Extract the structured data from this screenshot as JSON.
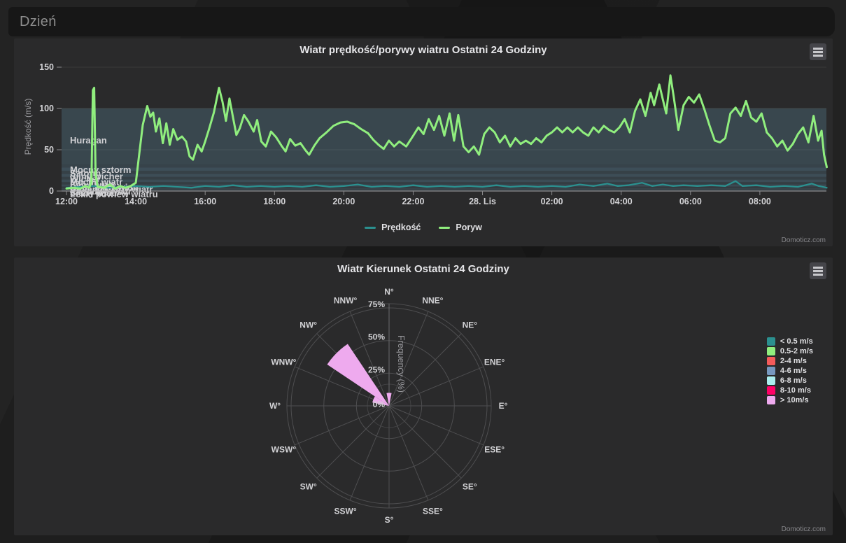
{
  "header": {
    "title": "Dzień"
  },
  "watermark": "Domoticz.com",
  "chart_data": [
    {
      "type": "line",
      "title": "Wiatr prędkość/porywy wiatru Ostatni 24 Godziny",
      "xlabel": "",
      "ylabel": "Prędkość (m/s)",
      "ylim": [
        0,
        150
      ],
      "y_ticks": [
        0,
        50,
        100,
        150
      ],
      "x_unit_hours_from": "27 Nov 12:00",
      "x_range_hours": [
        0,
        21.93
      ],
      "x_ticks": [
        {
          "t": 0,
          "label": "12:00"
        },
        {
          "t": 2,
          "label": "14:00"
        },
        {
          "t": 4,
          "label": "16:00"
        },
        {
          "t": 6,
          "label": "18:00"
        },
        {
          "t": 8,
          "label": "20:00"
        },
        {
          "t": 10,
          "label": "22:00"
        },
        {
          "t": 12,
          "label": "28. Lis"
        },
        {
          "t": 14,
          "label": "02:00"
        },
        {
          "t": 16,
          "label": "04:00"
        },
        {
          "t": 18,
          "label": "06:00"
        },
        {
          "t": 20,
          "label": "08:00"
        }
      ],
      "grid": true,
      "legend_position": "bottom",
      "plot_bands": [
        {
          "label": "Lekki powiew wiatru",
          "from": 0.3,
          "to": 1.5,
          "alpha": 0.14
        },
        {
          "label": "Słaby wiatr",
          "from": 1.5,
          "to": 3.3,
          "alpha": 0.26
        },
        {
          "label": "Łagodny wiatr",
          "from": 3.3,
          "to": 5.5,
          "alpha": 0.16
        },
        {
          "label": "Umiarkowany wiatr",
          "from": 5.5,
          "to": 8.0,
          "alpha": 0.3
        },
        {
          "label": "Dość silny wiatr",
          "from": 8.0,
          "to": 10.8,
          "alpha": 0.18
        },
        {
          "label": "Silny wiatr",
          "from": 10.8,
          "to": 13.9,
          "alpha": 0.32
        },
        {
          "label": "Mocny wiatr",
          "from": 13.9,
          "to": 17.2,
          "alpha": 0.2
        },
        {
          "label": "Wicher",
          "from": 17.2,
          "to": 20.7,
          "alpha": 0.33
        },
        {
          "label": "Silny wicher",
          "from": 20.7,
          "to": 24.5,
          "alpha": 0.22
        },
        {
          "label": "Sztorm",
          "from": 24.5,
          "to": 28.4,
          "alpha": 0.34
        },
        {
          "label": "Mocny sztorm",
          "from": 28.4,
          "to": 32.6,
          "alpha": 0.24
        },
        {
          "label": "Huragan",
          "from": 32.6,
          "to": 100,
          "alpha": 0.27
        }
      ],
      "series": [
        {
          "name": "Prędkość",
          "color": "#2b908f",
          "width": 2.3,
          "points": [
            [
              0,
              4
            ],
            [
              0.4,
              5
            ],
            [
              0.8,
              6
            ],
            [
              1.2,
              4
            ],
            [
              1.6,
              5
            ],
            [
              2,
              6
            ],
            [
              2.4,
              5
            ],
            [
              2.8,
              6
            ],
            [
              3.2,
              5
            ],
            [
              3.6,
              4
            ],
            [
              4,
              6
            ],
            [
              4.4,
              5
            ],
            [
              4.8,
              7
            ],
            [
              5.2,
              5
            ],
            [
              5.6,
              6
            ],
            [
              6,
              5
            ],
            [
              6.4,
              6
            ],
            [
              6.8,
              5
            ],
            [
              7.2,
              7
            ],
            [
              7.6,
              5
            ],
            [
              8,
              6
            ],
            [
              8.4,
              8
            ],
            [
              8.8,
              5
            ],
            [
              9.2,
              6
            ],
            [
              9.6,
              5
            ],
            [
              10,
              7
            ],
            [
              10.4,
              5
            ],
            [
              10.8,
              6
            ],
            [
              11.2,
              5
            ],
            [
              11.6,
              6
            ],
            [
              12,
              5
            ],
            [
              12.4,
              7
            ],
            [
              12.8,
              5
            ],
            [
              13.2,
              6
            ],
            [
              13.6,
              5
            ],
            [
              14,
              6
            ],
            [
              14.4,
              5
            ],
            [
              14.8,
              8
            ],
            [
              15.2,
              6
            ],
            [
              15.6,
              9
            ],
            [
              15.9,
              6
            ],
            [
              16.2,
              7
            ],
            [
              16.6,
              10
            ],
            [
              16.9,
              6
            ],
            [
              17.2,
              8
            ],
            [
              17.5,
              6
            ],
            [
              17.8,
              7
            ],
            [
              18.2,
              6
            ],
            [
              18.6,
              7
            ],
            [
              19,
              6
            ],
            [
              19.3,
              12
            ],
            [
              19.5,
              6
            ],
            [
              19.9,
              7
            ],
            [
              20.3,
              5
            ],
            [
              20.7,
              6
            ],
            [
              21.1,
              5
            ],
            [
              21.5,
              9
            ],
            [
              21.7,
              6
            ],
            [
              21.93,
              4
            ]
          ]
        },
        {
          "name": "Poryw",
          "color": "#90ee7e",
          "width": 3,
          "points": [
            [
              0,
              3
            ],
            [
              0.2,
              4
            ],
            [
              0.4,
              3
            ],
            [
              0.55,
              6
            ],
            [
              0.65,
              4
            ],
            [
              0.72,
              10
            ],
            [
              0.76,
              122
            ],
            [
              0.8,
              125
            ],
            [
              0.84,
              20
            ],
            [
              0.9,
              5
            ],
            [
              1.1,
              4
            ],
            [
              1.25,
              8
            ],
            [
              1.4,
              3
            ],
            [
              1.55,
              6
            ],
            [
              1.7,
              4
            ],
            [
              1.85,
              6
            ],
            [
              2.0,
              10
            ],
            [
              2.1,
              45
            ],
            [
              2.2,
              80
            ],
            [
              2.33,
              103
            ],
            [
              2.42,
              90
            ],
            [
              2.5,
              95
            ],
            [
              2.58,
              72
            ],
            [
              2.68,
              88
            ],
            [
              2.78,
              58
            ],
            [
              2.88,
              82
            ],
            [
              2.98,
              56
            ],
            [
              3.08,
              75
            ],
            [
              3.2,
              62
            ],
            [
              3.33,
              66
            ],
            [
              3.45,
              60
            ],
            [
              3.55,
              42
            ],
            [
              3.65,
              38
            ],
            [
              3.78,
              56
            ],
            [
              3.9,
              48
            ],
            [
              4.0,
              60
            ],
            [
              4.12,
              76
            ],
            [
              4.25,
              95
            ],
            [
              4.4,
              125
            ],
            [
              4.5,
              108
            ],
            [
              4.6,
              85
            ],
            [
              4.7,
              112
            ],
            [
              4.8,
              90
            ],
            [
              4.9,
              68
            ],
            [
              5.0,
              76
            ],
            [
              5.12,
              92
            ],
            [
              5.25,
              84
            ],
            [
              5.4,
              72
            ],
            [
              5.5,
              86
            ],
            [
              5.62,
              60
            ],
            [
              5.75,
              54
            ],
            [
              5.9,
              72
            ],
            [
              6.05,
              65
            ],
            [
              6.2,
              55
            ],
            [
              6.32,
              48
            ],
            [
              6.45,
              63
            ],
            [
              6.6,
              55
            ],
            [
              6.75,
              58
            ],
            [
              6.9,
              49
            ],
            [
              7.0,
              44
            ],
            [
              7.15,
              55
            ],
            [
              7.3,
              64
            ],
            [
              7.5,
              71
            ],
            [
              7.7,
              79
            ],
            [
              7.9,
              83
            ],
            [
              8.1,
              84
            ],
            [
              8.3,
              81
            ],
            [
              8.5,
              75
            ],
            [
              8.7,
              70
            ],
            [
              8.85,
              62
            ],
            [
              9.0,
              56
            ],
            [
              9.15,
              51
            ],
            [
              9.3,
              61
            ],
            [
              9.45,
              54
            ],
            [
              9.6,
              60
            ],
            [
              9.8,
              54
            ],
            [
              10.0,
              67
            ],
            [
              10.15,
              77
            ],
            [
              10.3,
              69
            ],
            [
              10.45,
              87
            ],
            [
              10.6,
              74
            ],
            [
              10.75,
              91
            ],
            [
              10.9,
              67
            ],
            [
              11.05,
              94
            ],
            [
              11.18,
              61
            ],
            [
              11.3,
              92
            ],
            [
              11.45,
              54
            ],
            [
              11.6,
              47
            ],
            [
              11.75,
              54
            ],
            [
              11.9,
              44
            ],
            [
              12.05,
              69
            ],
            [
              12.2,
              77
            ],
            [
              12.35,
              71
            ],
            [
              12.5,
              59
            ],
            [
              12.65,
              67
            ],
            [
              12.8,
              54
            ],
            [
              12.95,
              64
            ],
            [
              13.1,
              57
            ],
            [
              13.25,
              61
            ],
            [
              13.4,
              57
            ],
            [
              13.55,
              64
            ],
            [
              13.7,
              59
            ],
            [
              13.85,
              67
            ],
            [
              14.0,
              71
            ],
            [
              14.15,
              77
            ],
            [
              14.3,
              71
            ],
            [
              14.45,
              77
            ],
            [
              14.6,
              71
            ],
            [
              14.75,
              77
            ],
            [
              14.9,
              71
            ],
            [
              15.05,
              67
            ],
            [
              15.2,
              77
            ],
            [
              15.35,
              71
            ],
            [
              15.5,
              79
            ],
            [
              15.65,
              74
            ],
            [
              15.8,
              71
            ],
            [
              15.95,
              77
            ],
            [
              16.1,
              87
            ],
            [
              16.25,
              71
            ],
            [
              16.4,
              97
            ],
            [
              16.55,
              111
            ],
            [
              16.7,
              91
            ],
            [
              16.85,
              119
            ],
            [
              16.95,
              104
            ],
            [
              17.1,
              129
            ],
            [
              17.2,
              111
            ],
            [
              17.3,
              94
            ],
            [
              17.42,
              140
            ],
            [
              17.52,
              113
            ],
            [
              17.65,
              74
            ],
            [
              17.8,
              104
            ],
            [
              17.95,
              114
            ],
            [
              18.1,
              107
            ],
            [
              18.25,
              117
            ],
            [
              18.4,
              99
            ],
            [
              18.55,
              79
            ],
            [
              18.7,
              61
            ],
            [
              18.85,
              59
            ],
            [
              19.0,
              64
            ],
            [
              19.15,
              94
            ],
            [
              19.3,
              101
            ],
            [
              19.45,
              91
            ],
            [
              19.6,
              109
            ],
            [
              19.75,
              89
            ],
            [
              19.9,
              84
            ],
            [
              20.05,
              94
            ],
            [
              20.2,
              71
            ],
            [
              20.35,
              64
            ],
            [
              20.5,
              54
            ],
            [
              20.65,
              61
            ],
            [
              20.8,
              49
            ],
            [
              20.95,
              57
            ],
            [
              21.1,
              69
            ],
            [
              21.25,
              77
            ],
            [
              21.4,
              59
            ],
            [
              21.55,
              91
            ],
            [
              21.68,
              61
            ],
            [
              21.78,
              73
            ],
            [
              21.85,
              44
            ],
            [
              21.93,
              29
            ]
          ]
        }
      ]
    },
    {
      "type": "windrose",
      "title": "Wiatr Kierunek Ostatni 24 Godziny",
      "radial_axis_title": "Frequency (%)",
      "radial_ticks": [
        {
          "value": 0,
          "label": "0%"
        },
        {
          "value": 25,
          "label": "25%"
        },
        {
          "value": 50,
          "label": "50%"
        },
        {
          "value": 75,
          "label": "75%"
        }
      ],
      "radial_max": 75,
      "categories": [
        "N°",
        "NNE°",
        "NE°",
        "ENE°",
        "E°",
        "ESE°",
        "SE°",
        "SSE°",
        "S°",
        "SSW°",
        "SW°",
        "WSW°",
        "W°",
        "WNW°",
        "NW°",
        "NNW°"
      ],
      "series": [
        {
          "name": "> 10m/s",
          "color": "#eeaaee",
          "values": [
            10,
            0,
            0,
            0,
            0,
            0,
            0,
            0,
            0,
            0,
            0,
            0,
            0,
            13,
            57,
            0
          ]
        }
      ],
      "legend_position": "right",
      "legend": [
        {
          "label": "< 0.5 m/s",
          "color": "#2b908f"
        },
        {
          "label": "0.5-2 m/s",
          "color": "#90ee7e"
        },
        {
          "label": "2-4 m/s",
          "color": "#f45b5b"
        },
        {
          "label": "4-6 m/s",
          "color": "#7798bf"
        },
        {
          "label": "6-8 m/s",
          "color": "#aaeeee"
        },
        {
          "label": "8-10 m/s",
          "color": "#ff0066"
        },
        {
          "label": "> 10m/s",
          "color": "#eeaaee"
        }
      ]
    }
  ]
}
